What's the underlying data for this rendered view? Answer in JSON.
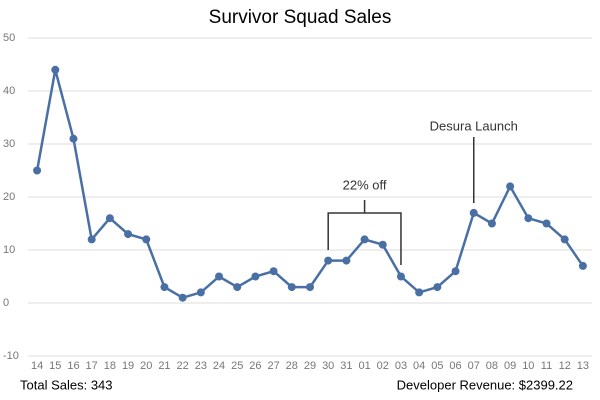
{
  "chart_data": {
    "type": "line",
    "title": "Survivor Squad Sales",
    "categories": [
      "14",
      "15",
      "16",
      "17",
      "18",
      "19",
      "20",
      "21",
      "22",
      "23",
      "24",
      "25",
      "26",
      "27",
      "28",
      "29",
      "30",
      "31",
      "01",
      "02",
      "03",
      "04",
      "05",
      "06",
      "07",
      "08",
      "09",
      "10",
      "11",
      "12",
      "13"
    ],
    "series": [
      {
        "name": "Sales",
        "color": "#4a6fa5",
        "values": [
          25,
          44,
          31,
          12,
          16,
          13,
          12,
          3,
          1,
          2,
          5,
          3,
          5,
          6,
          3,
          3,
          8,
          8,
          12,
          11,
          5,
          2,
          3,
          6,
          17,
          15,
          22,
          16,
          15,
          12,
          7
        ]
      }
    ],
    "ylim": [
      -10,
      50
    ],
    "yticks": [
      -10,
      0,
      10,
      20,
      30,
      40,
      50
    ],
    "grid": true,
    "annotations": [
      {
        "text": "22% off",
        "from": "30",
        "to": "03"
      },
      {
        "text": "Desura Launch",
        "at": "07"
      }
    ]
  },
  "footer": {
    "total_sales": "Total Sales: 343",
    "revenue": "Developer Revenue: $2399.22"
  }
}
